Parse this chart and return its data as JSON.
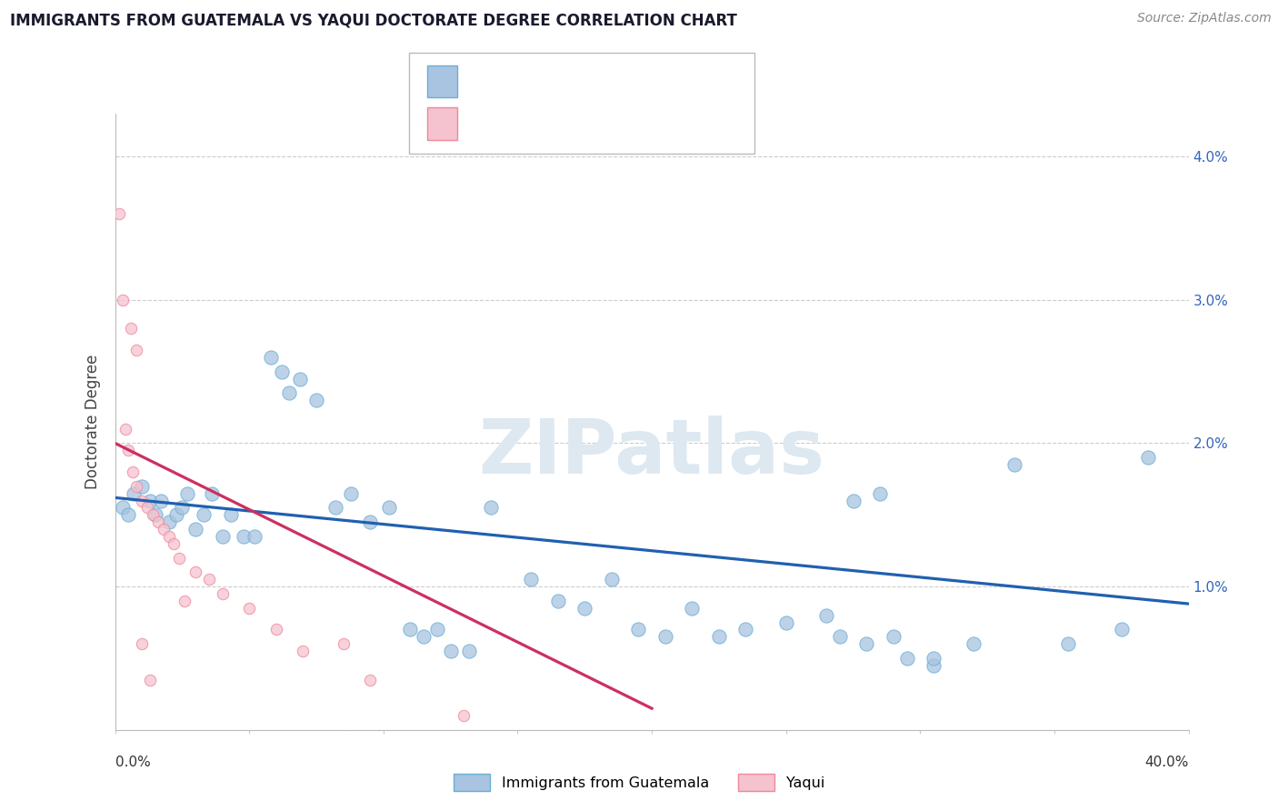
{
  "title": "IMMIGRANTS FROM GUATEMALA VS YAQUI DOCTORATE DEGREE CORRELATION CHART",
  "source": "Source: ZipAtlas.com",
  "ylabel": "Doctorate Degree",
  "legend_label1": "Immigrants from Guatemala",
  "legend_label2": "Yaqui",
  "watermark": "ZIPatlas",
  "blue_scatter_x": [
    0.3,
    0.5,
    0.7,
    1.0,
    1.3,
    1.5,
    1.7,
    2.0,
    2.3,
    2.5,
    2.7,
    3.0,
    3.3,
    3.6,
    4.0,
    4.3,
    4.8,
    5.2,
    5.8,
    6.2,
    6.5,
    6.9,
    7.5,
    8.2,
    8.8,
    9.5,
    10.2,
    11.0,
    11.5,
    12.0,
    12.5,
    13.2,
    14.0,
    15.5,
    16.5,
    17.5,
    18.5,
    19.5,
    20.5,
    21.5,
    22.5,
    23.5,
    25.0,
    26.5,
    27.5,
    28.5,
    29.5,
    30.5,
    32.0,
    33.5,
    35.5,
    37.5,
    38.5,
    28.0,
    29.0,
    30.5,
    27.0
  ],
  "blue_scatter_y": [
    1.55,
    1.5,
    1.65,
    1.7,
    1.6,
    1.5,
    1.6,
    1.45,
    1.5,
    1.55,
    1.65,
    1.4,
    1.5,
    1.65,
    1.35,
    1.5,
    1.35,
    1.35,
    2.6,
    2.5,
    2.35,
    2.45,
    2.3,
    1.55,
    1.65,
    1.45,
    1.55,
    0.7,
    0.65,
    0.7,
    0.55,
    0.55,
    1.55,
    1.05,
    0.9,
    0.85,
    1.05,
    0.7,
    0.65,
    0.85,
    0.65,
    0.7,
    0.75,
    0.8,
    1.6,
    1.65,
    0.5,
    0.45,
    0.6,
    1.85,
    0.6,
    0.7,
    1.9,
    0.6,
    0.65,
    0.5,
    0.65
  ],
  "pink_scatter_x": [
    0.15,
    0.3,
    0.6,
    0.8,
    0.4,
    0.5,
    0.65,
    0.8,
    1.0,
    1.2,
    1.4,
    1.6,
    1.8,
    2.0,
    2.2,
    2.4,
    2.6,
    3.0,
    3.5,
    4.0,
    5.0,
    6.0,
    7.0,
    8.5,
    9.5,
    1.0,
    1.3,
    13.0
  ],
  "pink_scatter_y": [
    3.6,
    3.0,
    2.8,
    2.65,
    2.1,
    1.95,
    1.8,
    1.7,
    1.6,
    1.55,
    1.5,
    1.45,
    1.4,
    1.35,
    1.3,
    1.2,
    0.9,
    1.1,
    1.05,
    0.95,
    0.85,
    0.7,
    0.55,
    0.6,
    0.35,
    0.6,
    0.35,
    0.1
  ],
  "blue_line_x": [
    0,
    40
  ],
  "blue_line_y": [
    1.62,
    0.88
  ],
  "pink_line_x": [
    0,
    20
  ],
  "pink_line_y": [
    2.0,
    0.15
  ],
  "xlim": [
    0,
    40
  ],
  "ylim": [
    0,
    4.3
  ],
  "yticks": [
    0,
    1.0,
    2.0,
    3.0,
    4.0
  ],
  "ytick_labels_right": [
    "",
    "1.0%",
    "2.0%",
    "3.0%",
    "4.0%"
  ],
  "bg_color": "#ffffff",
  "grid_color": "#cccccc",
  "blue_color": "#a8c4e0",
  "blue_edge": "#6aaed6",
  "pink_color": "#f5c2cf",
  "pink_edge": "#f08898",
  "blue_line_color": "#2060b0",
  "pink_line_color": "#cc3060",
  "blue_text_color": "#2060b0",
  "pink_text_color": "#cc3060",
  "corr_text_color": "#2060b0"
}
